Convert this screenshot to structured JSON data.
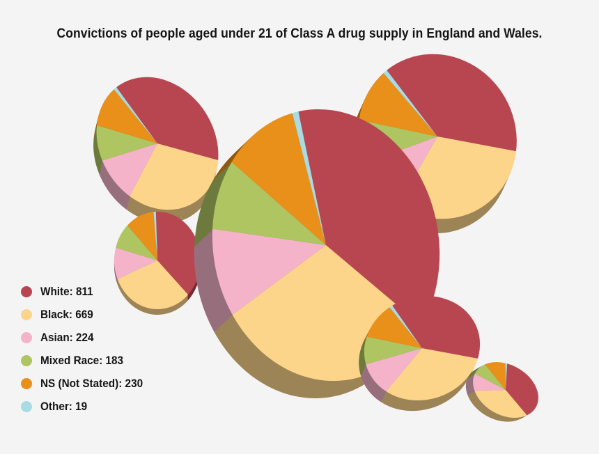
{
  "title": "Convictions of people aged under 21 of Class A drug supply in England and Wales.",
  "chart_data": {
    "type": "pie",
    "title": "Convictions of people aged under 21 of Class A drug supply in England and Wales.",
    "legend_position": "left",
    "series": [
      {
        "name": "White",
        "value": 811,
        "color": "#b84650"
      },
      {
        "name": "Black",
        "value": 669,
        "color": "#fdd58a"
      },
      {
        "name": "Asian",
        "value": 224,
        "color": "#f4b3c8"
      },
      {
        "name": "Mixed Race",
        "value": 183,
        "color": "#afc562"
      },
      {
        "name": "NS (Not Stated)",
        "value": 230,
        "color": "#e8901a"
      },
      {
        "name": "Other",
        "value": 19,
        "color": "#a9dbe4"
      }
    ]
  }
}
